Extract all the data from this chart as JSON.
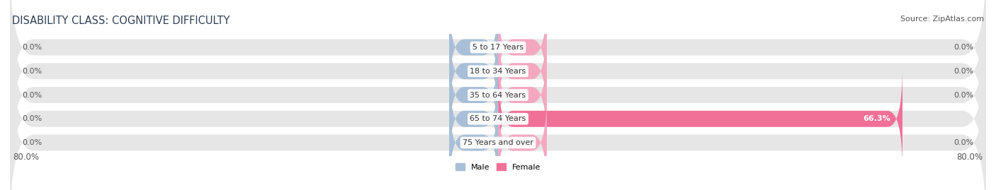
{
  "title": "DISABILITY CLASS: COGNITIVE DIFFICULTY",
  "source": "Source: ZipAtlas.com",
  "categories": [
    "5 to 17 Years",
    "18 to 34 Years",
    "35 to 64 Years",
    "65 to 74 Years",
    "75 Years and over"
  ],
  "male_values": [
    0.0,
    0.0,
    0.0,
    0.0,
    0.0
  ],
  "female_values": [
    0.0,
    0.0,
    0.0,
    66.3,
    0.0
  ],
  "male_color": "#a8bfd8",
  "female_color": "#f07098",
  "female_color_light": "#f4a8c0",
  "bar_bg_color": "#e6e6e6",
  "axis_min": -80.0,
  "axis_max": 80.0,
  "left_label": "80.0%",
  "right_label": "80.0%",
  "legend_male": "Male",
  "legend_female": "Female",
  "title_fontsize": 10.5,
  "source_fontsize": 8,
  "value_label_fontsize": 8,
  "cat_label_fontsize": 8,
  "axis_label_fontsize": 8.5,
  "bar_height": 0.68,
  "background_color": "#ffffff",
  "title_color": "#2e4057",
  "label_color": "#555555",
  "cat_label_color": "#333333"
}
